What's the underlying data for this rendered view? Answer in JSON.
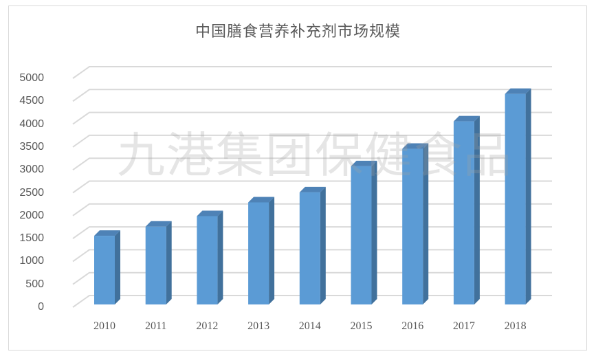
{
  "chart_data": {
    "type": "bar",
    "title": "中国膳食营养补充剂市场规模",
    "xlabel": "",
    "ylabel": "",
    "categories": [
      "2010",
      "2011",
      "2012",
      "2013",
      "2014",
      "2015",
      "2016",
      "2017",
      "2018"
    ],
    "values": [
      1500,
      1700,
      1930,
      2230,
      2450,
      3020,
      3400,
      4000,
      4600
    ],
    "ylim": [
      0,
      5000
    ],
    "yticks": [
      "0",
      "500",
      "1000",
      "1500",
      "2000",
      "2500",
      "3000",
      "3500",
      "4000",
      "4500",
      "5000"
    ],
    "grid": true,
    "legend": "none",
    "style": "3d-column",
    "bar_color": "#5b9bd5",
    "watermark": "九港集团保健食品"
  }
}
